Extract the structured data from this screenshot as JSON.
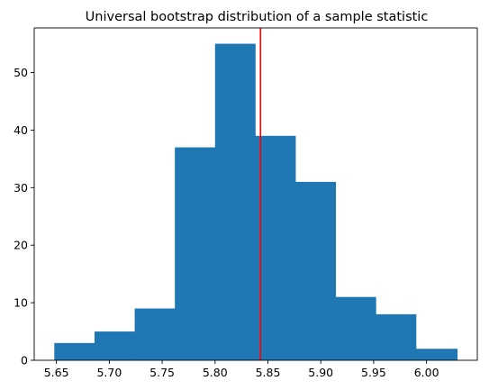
{
  "chart_data": {
    "type": "bar",
    "title": "Universal bootstrap distribution of a sample statistic",
    "xlabel": "",
    "ylabel": "",
    "bins": [
      {
        "x0": 5.648,
        "x1": 5.686,
        "count": 3
      },
      {
        "x0": 5.686,
        "x1": 5.724,
        "count": 5
      },
      {
        "x0": 5.724,
        "x1": 5.762,
        "count": 9
      },
      {
        "x0": 5.762,
        "x1": 5.8,
        "count": 37
      },
      {
        "x0": 5.8,
        "x1": 5.838,
        "count": 55
      },
      {
        "x0": 5.838,
        "x1": 5.876,
        "count": 39
      },
      {
        "x0": 5.876,
        "x1": 5.914,
        "count": 31
      },
      {
        "x0": 5.914,
        "x1": 5.952,
        "count": 11
      },
      {
        "x0": 5.952,
        "x1": 5.99,
        "count": 8
      },
      {
        "x0": 5.99,
        "x1": 6.029,
        "count": 2
      }
    ],
    "reference_line": {
      "x": 5.843,
      "color": "#ff0000"
    },
    "xlim": [
      5.629,
      6.048
    ],
    "ylim": [
      0,
      57.75
    ],
    "xticks": [
      5.65,
      5.7,
      5.75,
      5.8,
      5.85,
      5.9,
      5.95,
      6.0
    ],
    "xtick_labels": [
      "5.65",
      "5.70",
      "5.75",
      "5.80",
      "5.85",
      "5.90",
      "5.95",
      "6.00"
    ],
    "yticks": [
      0,
      10,
      20,
      30,
      40,
      50
    ],
    "ytick_labels": [
      "0",
      "10",
      "20",
      "30",
      "40",
      "50"
    ],
    "grid": false,
    "bar_color": "#1f77b4",
    "axis_color": "#000000"
  }
}
